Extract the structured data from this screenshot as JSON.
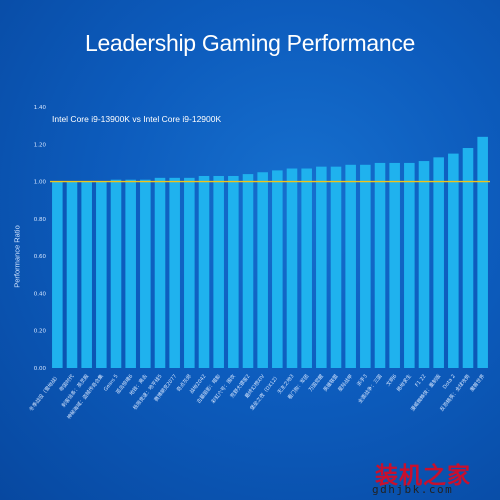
{
  "chart_data": {
    "type": "bar",
    "title": "Leadership Gaming Performance",
    "subtitle": "Intel Core i9-13900K vs Intel Core i9-12900K",
    "ylabel": "Performance Ratio",
    "xlabel": "",
    "ylim": [
      0,
      1.4
    ],
    "yticks": [
      "0.00",
      "0.20",
      "0.40",
      "0.60",
      "0.80",
      "1.00",
      "1.20",
      "1.40"
    ],
    "reference_line": 1.0,
    "grid": false,
    "categories": [
      "冬季战役（雪地战）",
      "帝国时代",
      "刺客信条：英灵殿",
      "神秘海域：盗贼传奇合集",
      "Gears 5",
      "孤岛惊魂6",
      "地铁：离去",
      "极限竞速：地平线5",
      "赛博朋克2077",
      "奇点灰烬",
      "战地2042",
      "古墓丽影：暗影",
      "彩虹六号：围攻",
      "荒野大镖客2",
      "最终幻想XIV",
      "堡垒之夜（DX12）",
      "无主之地3",
      "看门狗：军团",
      "万国觉醒",
      "英雄联盟",
      "星际战甲",
      "杀手3",
      "全面战争：三国",
      "文明6",
      "绝地求生",
      "F1 22",
      "漫威蜘蛛侠：重制版",
      "Dota 2",
      "反恐精英：全球攻势",
      "魔兽世界"
    ],
    "values": [
      1.0,
      1.0,
      1.0,
      1.0,
      1.01,
      1.01,
      1.01,
      1.02,
      1.02,
      1.02,
      1.03,
      1.03,
      1.03,
      1.04,
      1.05,
      1.06,
      1.07,
      1.07,
      1.08,
      1.08,
      1.09,
      1.09,
      1.1,
      1.1,
      1.1,
      1.11,
      1.13,
      1.15,
      1.18,
      1.24
    ],
    "colors": {
      "bar": "#1fb2ee",
      "reference_line": "#f0c419"
    }
  },
  "watermark": {
    "text": "装机之家",
    "url": "gdhjbk.com"
  }
}
